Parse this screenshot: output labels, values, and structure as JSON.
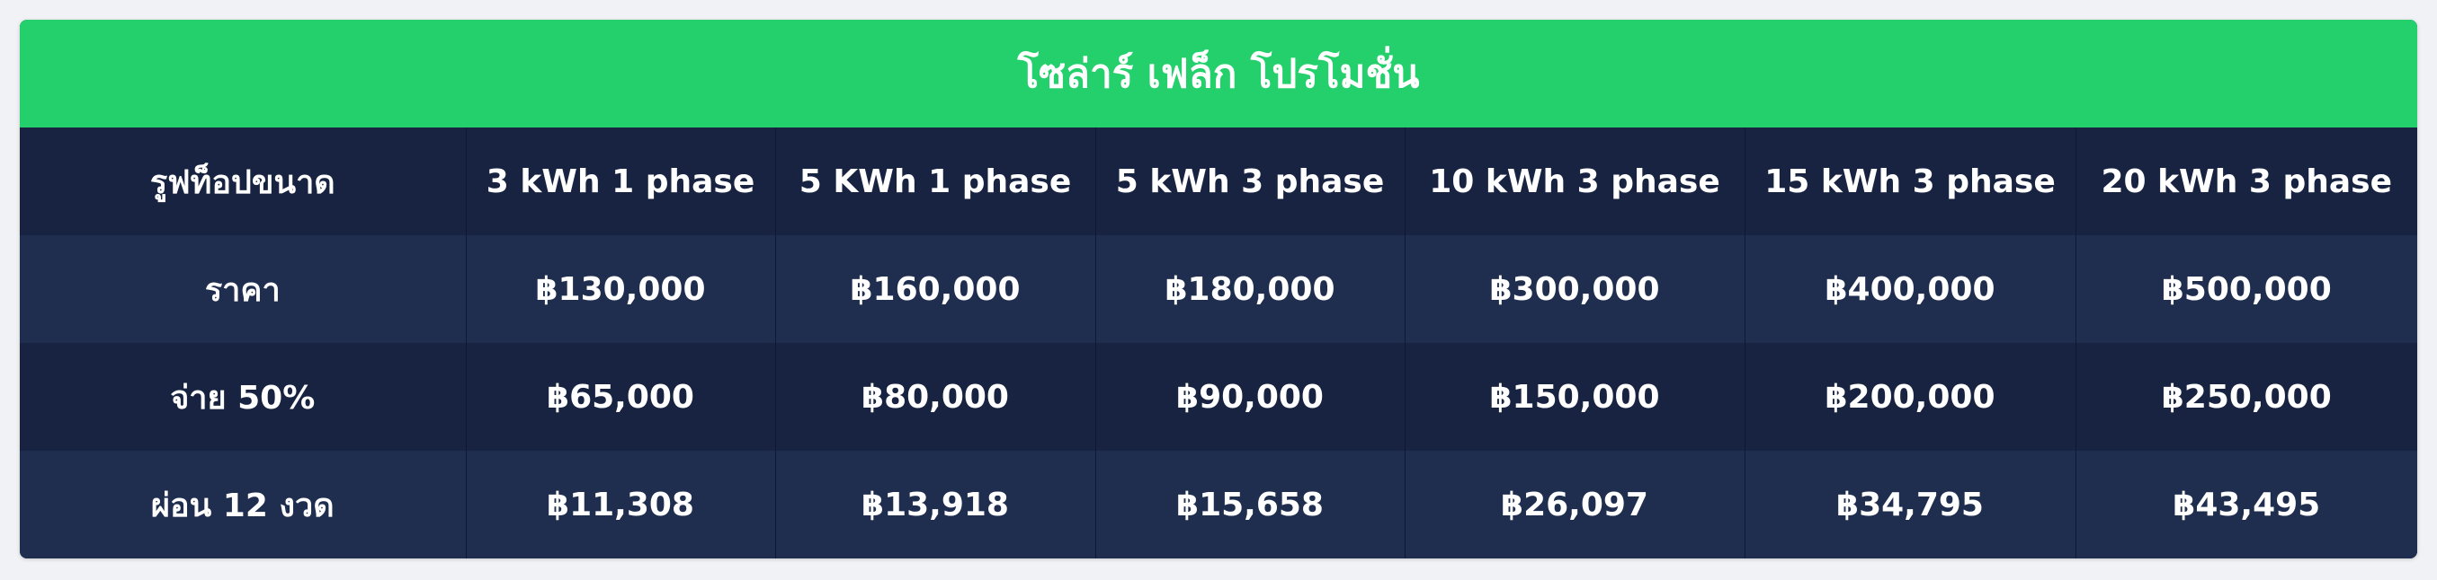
{
  "title": "โซล่าร์ เฟล็ก โปรโมชั่น",
  "colors": {
    "title_bar": "#24d06c",
    "header_row": "#172340",
    "row_light": "#1f2d4e",
    "row_dark": "#172340",
    "text": "#ffffff"
  },
  "table": {
    "headers": [
      "รูฟท็อปขนาด",
      "3 kWh 1 phase",
      "5 KWh 1 phase",
      "5 kWh 3 phase",
      "10 kWh 3 phase",
      "15 kWh 3 phase",
      "20 kWh 3 phase"
    ],
    "rows": [
      [
        "ราคา",
        "฿130,000",
        "฿160,000",
        "฿180,000",
        "฿300,000",
        "฿400,000",
        "฿500,000"
      ],
      [
        "จ่าย 50%",
        "฿65,000",
        "฿80,000",
        "฿90,000",
        "฿150,000",
        "฿200,000",
        "฿250,000"
      ],
      [
        "ผ่อน 12 งวด",
        "฿11,308",
        "฿13,918",
        "฿15,658",
        "฿26,097",
        "฿34,795",
        "฿43,495"
      ]
    ]
  }
}
